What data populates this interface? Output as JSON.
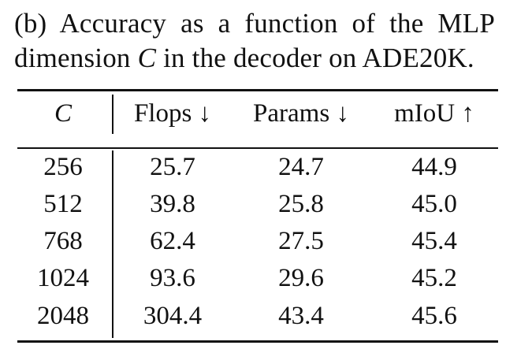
{
  "caption": {
    "line1": "(b) Accuracy as a function of the MLP",
    "line2_prefix": "dimension",
    "line2_var": "C",
    "line2_suffix": "in the decoder on ADE20K."
  },
  "table": {
    "headers": {
      "c": "C",
      "flops": "Flops ↓",
      "params": "Params ↓",
      "miou": "mIoU ↑"
    },
    "rows": [
      {
        "c": "256",
        "flops": "25.7",
        "params": "24.7",
        "miou": "44.9"
      },
      {
        "c": "512",
        "flops": "39.8",
        "params": "25.8",
        "miou": "45.0"
      },
      {
        "c": "768",
        "flops": "62.4",
        "params": "27.5",
        "miou": "45.4"
      },
      {
        "c": "1024",
        "flops": "93.6",
        "params": "29.6",
        "miou": "45.2"
      },
      {
        "c": "2048",
        "flops": "304.4",
        "params": "43.4",
        "miou": "45.6"
      }
    ]
  }
}
